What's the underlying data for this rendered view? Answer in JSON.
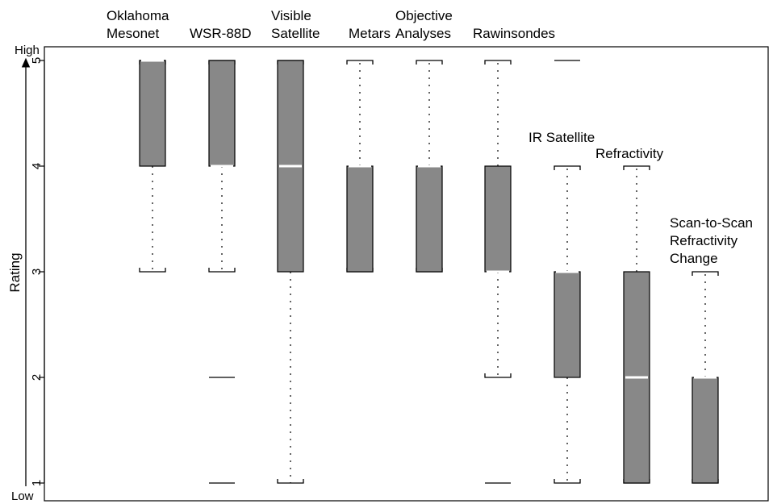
{
  "chart_data": {
    "type": "box",
    "ylabel": "Rating",
    "y_high_label": "High",
    "y_low_label": "Low",
    "ylim": [
      1,
      5
    ],
    "yticks": [
      "1",
      "2",
      "3",
      "4",
      "5"
    ],
    "colors": {
      "box_fill": "#888888",
      "median": "#ffffff",
      "line": "#000000"
    },
    "categories": [
      {
        "name": [
          "Oklahoma",
          "Mesonet"
        ],
        "whisker_low": 3,
        "q1": 4,
        "median": 5,
        "q3": 5,
        "whisker_high": 5,
        "outliers": []
      },
      {
        "name": [
          "WSR-88D"
        ],
        "whisker_low": 3,
        "q1": 4,
        "median": 4,
        "q3": 5,
        "whisker_high": 5,
        "outliers": [
          2,
          1
        ]
      },
      {
        "name": [
          "Visible",
          "Satellite"
        ],
        "whisker_low": 1,
        "q1": 3,
        "median": 4,
        "q3": 5,
        "whisker_high": 5,
        "outliers": []
      },
      {
        "name": [
          "Metars"
        ],
        "whisker_low": 3,
        "q1": 3,
        "median": 4,
        "q3": 4,
        "whisker_high": 5,
        "outliers": []
      },
      {
        "name": [
          "Objective",
          "Analyses"
        ],
        "whisker_low": 3,
        "q1": 3,
        "median": 4,
        "q3": 4,
        "whisker_high": 5,
        "outliers": []
      },
      {
        "name": [
          "Rawinsondes"
        ],
        "whisker_low": 2,
        "q1": 3,
        "median": 3,
        "q3": 4,
        "whisker_high": 5,
        "outliers": [
          1
        ]
      },
      {
        "name": [
          "IR Satellite"
        ],
        "whisker_low": 1,
        "q1": 2,
        "median": 3,
        "q3": 3,
        "whisker_high": 4,
        "outliers": [
          5
        ]
      },
      {
        "name": [
          "Refractivity"
        ],
        "whisker_low": 1,
        "q1": 1,
        "median": 2,
        "q3": 3,
        "whisker_high": 4,
        "outliers": []
      },
      {
        "name": [
          "Scan-to-Scan",
          "Refractivity",
          "Change"
        ],
        "whisker_low": 1,
        "q1": 1,
        "median": 2,
        "q3": 2,
        "whisker_high": 3,
        "outliers": []
      }
    ]
  }
}
